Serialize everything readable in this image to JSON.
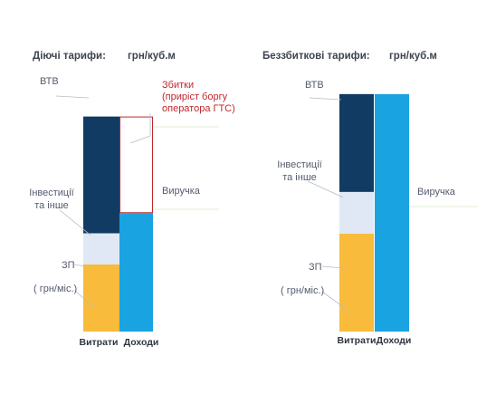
{
  "colors": {
    "vtb": "#123b63",
    "investments": "#dfe8f4",
    "zp": "#f8bb3c",
    "revenue": "#1aa3e1",
    "loss_outline": "#c0272d",
    "leader": "#b6bcc7",
    "leader_accent": "#d6e7c9"
  },
  "chart_data": [
    {
      "type": "bar",
      "stacked": true,
      "title": "Діючі тарифи:",
      "unit": "грн/куб.м",
      "categories": [
        "Витрати",
        "Доходи"
      ],
      "ylim": [
        0,
        275
      ],
      "series": [
        {
          "name": "ЗП",
          "label_lines": [
            "ЗП",
            "",
            "( грн/міс.)"
          ],
          "values": [
            80,
            0
          ],
          "color": "#f8bb3c"
        },
        {
          "name": "Інвестиції та інше",
          "label_lines": [
            "Інвестиції",
            "та інше"
          ],
          "values": [
            37,
            0
          ],
          "color": "#dfe8f4"
        },
        {
          "name": "ВТВ",
          "label_lines": [
            "ВТВ"
          ],
          "values": [
            139,
            0
          ],
          "color": "#123b63"
        },
        {
          "name": "Виручка",
          "label_lines": [
            "Виручка"
          ],
          "values": [
            0,
            141
          ],
          "color": "#1aa3e1"
        },
        {
          "name": "Збитки",
          "label_lines": [
            "Збитки",
            "(приріст боргу",
            "оператора ГТС)"
          ],
          "values": [
            0,
            115
          ],
          "color": "none",
          "outline": "#c0272d"
        }
      ]
    },
    {
      "type": "bar",
      "stacked": true,
      "title": "Беззбиткові тарифи:",
      "unit": "грн/куб.м",
      "categories": [
        "Витрати",
        "Доходи"
      ],
      "ylim": [
        0,
        275
      ],
      "series": [
        {
          "name": "ЗП",
          "label_lines": [
            "ЗП",
            "",
            "( грн/міс.)"
          ],
          "values": [
            110,
            0
          ],
          "color": "#f8bb3c"
        },
        {
          "name": "Інвестиції та інше",
          "label_lines": [
            "Інвестиції",
            "та інше"
          ],
          "values": [
            47,
            0
          ],
          "color": "#dfe8f4"
        },
        {
          "name": "ВТВ",
          "label_lines": [
            "ВТВ"
          ],
          "values": [
            110,
            0
          ],
          "color": "#123b63"
        },
        {
          "name": "Виручка",
          "label_lines": [
            "Виручка"
          ],
          "values": [
            0,
            267
          ],
          "color": "#1aa3e1"
        }
      ]
    }
  ]
}
